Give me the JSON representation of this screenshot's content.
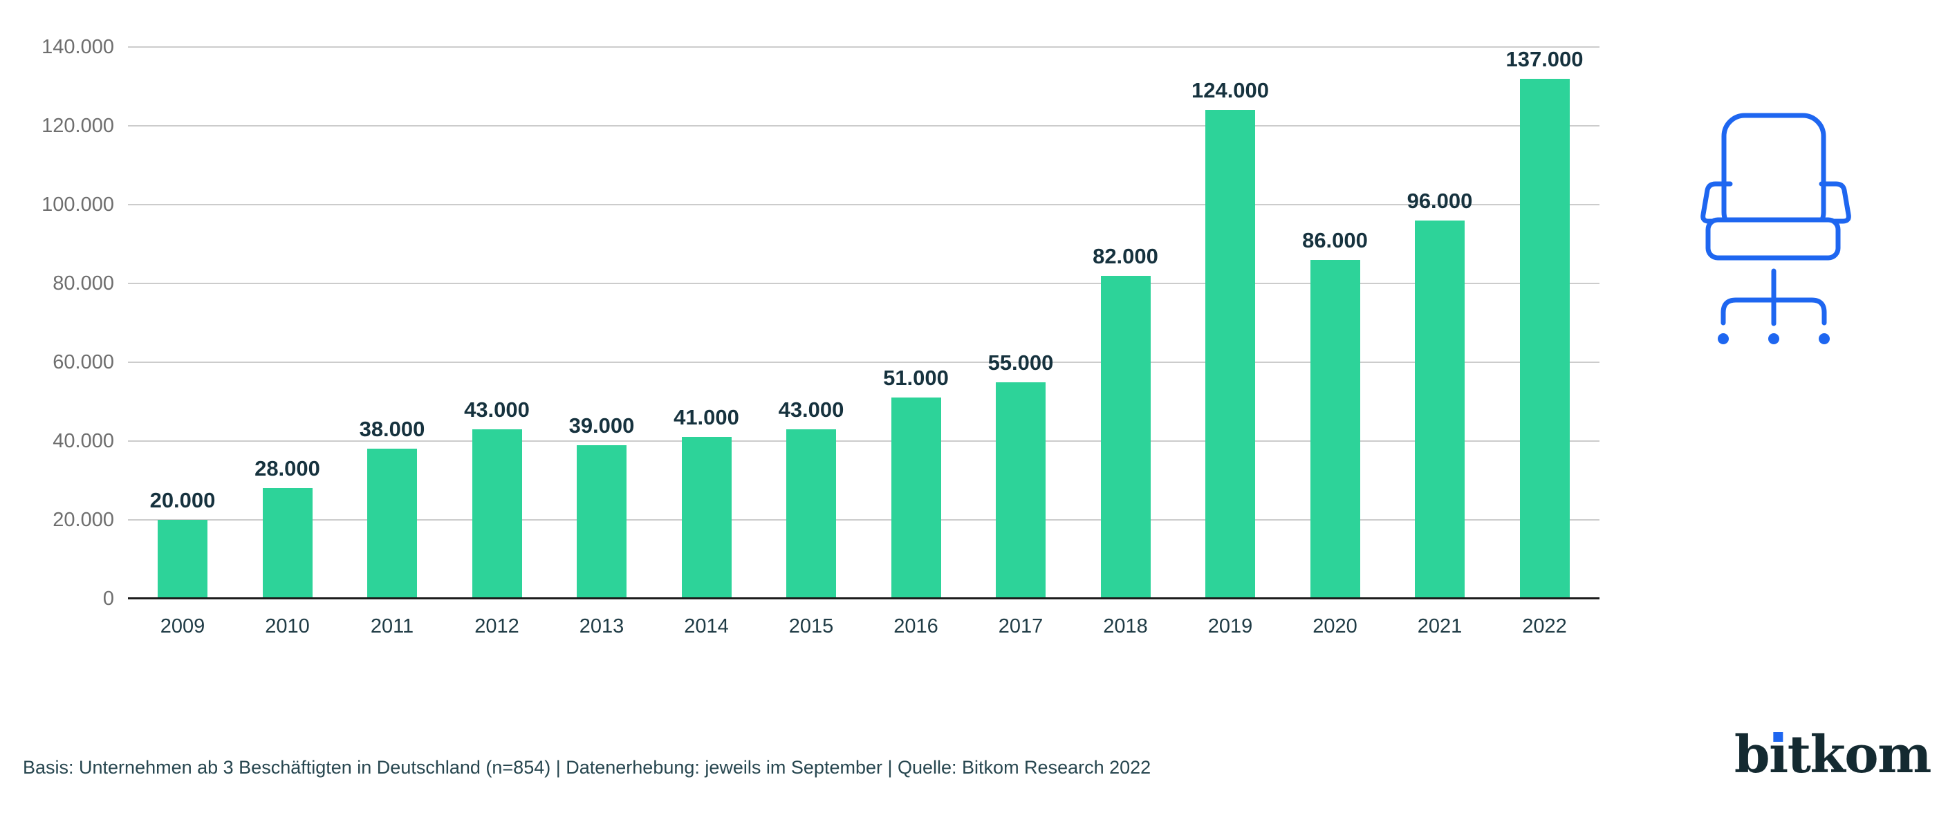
{
  "chart_data": {
    "type": "bar",
    "title": "",
    "xlabel": "",
    "ylabel": "",
    "categories": [
      "2009",
      "2010",
      "2011",
      "2012",
      "2013",
      "2014",
      "2015",
      "2016",
      "2017",
      "2018",
      "2019",
      "2020",
      "2021",
      "2022"
    ],
    "values": [
      20000,
      28000,
      38000,
      43000,
      39000,
      41000,
      43000,
      51000,
      55000,
      82000,
      124000,
      86000,
      96000,
      137000
    ],
    "value_labels": [
      "20.000",
      "28.000",
      "38.000",
      "43.000",
      "39.000",
      "41.000",
      "43.000",
      "51.000",
      "55.000",
      "82.000",
      "124.000",
      "86.000",
      "96.000",
      "137.000"
    ],
    "ylim": [
      0,
      140000
    ],
    "y_ticks": [
      {
        "value": 140000,
        "label": "140.000"
      },
      {
        "value": 120000,
        "label": "120.000"
      },
      {
        "value": 100000,
        "label": "100.000"
      },
      {
        "value": 80000,
        "label": "80.000"
      },
      {
        "value": 60000,
        "label": "60.000"
      },
      {
        "value": 40000,
        "label": "40.000"
      },
      {
        "value": 20000,
        "label": "20.000"
      },
      {
        "value": 0,
        "label": "0"
      }
    ],
    "grid": true,
    "legend_position": "none",
    "bar_color": "#2dd399"
  },
  "footer": {
    "source_note": "Basis: Unternehmen ab 3 Beschäftigten in Deutschland (n=854) | Datenerhebung: jeweils im September | Quelle: Bitkom Research 2022"
  },
  "logo": {
    "text": "bitkom",
    "text_color": "#142a31",
    "dot_color": "#1e66f0"
  },
  "icons": {
    "office_chair": {
      "name": "office-chair-icon",
      "color": "#1e66f0"
    }
  },
  "colors": {
    "bar": "#2dd399",
    "gridline": "#cccccc",
    "axis_line": "#1c1c1c",
    "y_tick_label": "#6e6e6e",
    "category_label": "#1f3b45",
    "value_label": "#16323e",
    "footer_text": "#27464f"
  }
}
